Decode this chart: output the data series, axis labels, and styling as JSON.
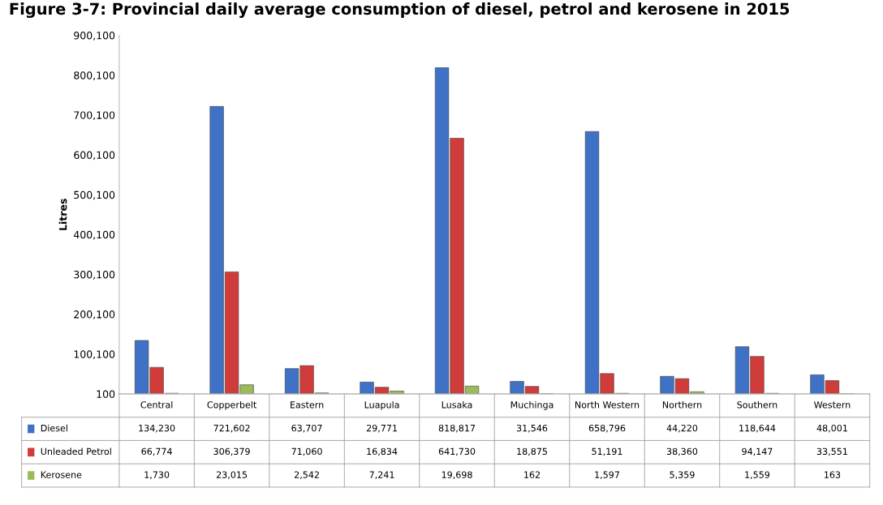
{
  "chart_data": {
    "type": "bar",
    "title": "Figure 3-7: Provincial daily average consumption of diesel, petrol and kerosene in 2015",
    "ylabel": "Litres",
    "categories": [
      "Central",
      "Copperbelt",
      "Eastern",
      "Luapula",
      "Lusaka",
      "Muchinga",
      "North Western",
      "Northern",
      "Southern",
      "Western"
    ],
    "series": [
      {
        "name": "Diesel",
        "color": "#3f72c6",
        "values": [
          134230,
          721602,
          63707,
          29771,
          818817,
          31546,
          658796,
          44220,
          118644,
          48001
        ],
        "value_labels": [
          "134,230",
          "721,602",
          "63,707",
          "29,771",
          "818,817",
          "31,546",
          "658,796",
          "44,220",
          "118,644",
          "48,001"
        ]
      },
      {
        "name": "Unleaded Petrol",
        "color": "#d03c3a",
        "values": [
          66774,
          306379,
          71060,
          16834,
          641730,
          18875,
          51191,
          38360,
          94147,
          33551
        ],
        "value_labels": [
          "66,774",
          "306,379",
          "71,060",
          "16,834",
          "641,730",
          "18,875",
          "51,191",
          "38,360",
          "94,147",
          "33,551"
        ]
      },
      {
        "name": "Kerosene",
        "color": "#9bbb59",
        "values": [
          1730,
          23015,
          2542,
          7241,
          19698,
          162,
          1597,
          5359,
          1559,
          163
        ],
        "value_labels": [
          "1,730",
          "23,015",
          "2,542",
          "7,241",
          "19,698",
          "162",
          "1,597",
          "5,359",
          "1,559",
          "163"
        ]
      }
    ],
    "ylim": [
      100,
      900100
    ],
    "yticks": [
      {
        "value": 100,
        "label": "100"
      },
      {
        "value": 100100,
        "label": "100,100"
      },
      {
        "value": 200100,
        "label": "200,100"
      },
      {
        "value": 300100,
        "label": "300,100"
      },
      {
        "value": 400100,
        "label": "400,100"
      },
      {
        "value": 500100,
        "label": "500,100"
      },
      {
        "value": 600100,
        "label": "600,100"
      },
      {
        "value": 700100,
        "label": "700,100"
      },
      {
        "value": 800100,
        "label": "800,100"
      },
      {
        "value": 900100,
        "label": "900,100"
      }
    ],
    "legend": "bottom",
    "grid": false
  }
}
